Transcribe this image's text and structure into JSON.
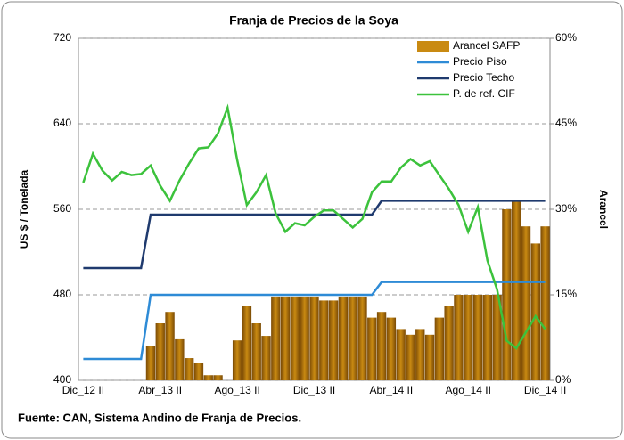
{
  "chart_data": {
    "type": "bar",
    "title": "Franja de Precios de la Soya",
    "y_label": "US $ / Tonelada",
    "y2_label": "Arancel",
    "source": "Fuente: CAN, Sistema Andino de Franja de Precios.",
    "categories": [
      "Dic_12 II",
      null,
      null,
      null,
      null,
      null,
      null,
      null,
      "Abr_13 II",
      null,
      null,
      null,
      null,
      null,
      null,
      null,
      "Ago_13 II",
      null,
      null,
      null,
      null,
      null,
      null,
      null,
      "Dic_13 II",
      null,
      null,
      null,
      null,
      null,
      null,
      null,
      "Abr_14 II",
      null,
      null,
      null,
      null,
      null,
      null,
      null,
      "Ago_14 II",
      null,
      null,
      null,
      null,
      null,
      null,
      null,
      "Dic_14 II"
    ],
    "ylim": [
      400,
      720
    ],
    "yticks": [
      400,
      480,
      560,
      640,
      720
    ],
    "y2lim": [
      0,
      60
    ],
    "y2ticks": [
      {
        "value": 0,
        "label": "0%"
      },
      {
        "value": 15,
        "label": "15%"
      },
      {
        "value": 30,
        "label": "30%"
      },
      {
        "value": 45,
        "label": "45%"
      },
      {
        "value": 60,
        "label": "60%"
      }
    ],
    "grid": true,
    "legend": "upper right",
    "series": [
      {
        "name": "Arancel SAFP",
        "type": "bar",
        "axis": "y2",
        "color": "#c98a12",
        "values": [
          0,
          0,
          0,
          0,
          0,
          0,
          0,
          6,
          10,
          12,
          7.2,
          3.9,
          3.1,
          0.9,
          0.9,
          0,
          7,
          13,
          10,
          7.8,
          14.7,
          14.7,
          14.7,
          14.7,
          14.7,
          14,
          14,
          14.7,
          14.7,
          14.7,
          11,
          12,
          11,
          9,
          8,
          9,
          8,
          11,
          13,
          15,
          15,
          15,
          15,
          15,
          30,
          31.7,
          27,
          24,
          27
        ]
      },
      {
        "name": "Precio Piso",
        "type": "line",
        "color": "#2e8bd6",
        "values": [
          420,
          420,
          420,
          420,
          420,
          420,
          420,
          480,
          480,
          480,
          480,
          480,
          480,
          480,
          480,
          480,
          480,
          480,
          480,
          480,
          480,
          480,
          480,
          480,
          480,
          480,
          480,
          480,
          480,
          480,
          480,
          492,
          492,
          492,
          492,
          492,
          492,
          492,
          492,
          492,
          492,
          492,
          492,
          492,
          492,
          492,
          492,
          492,
          492
        ]
      },
      {
        "name": "Precio Techo",
        "type": "line",
        "color": "#1f3a6e",
        "values": [
          505,
          505,
          505,
          505,
          505,
          505,
          505,
          555,
          555,
          555,
          555,
          555,
          555,
          555,
          555,
          555,
          555,
          555,
          555,
          555,
          555,
          555,
          555,
          555,
          555,
          555,
          555,
          555,
          555,
          555,
          555,
          568,
          568,
          568,
          568,
          568,
          568,
          568,
          568,
          568,
          568,
          568,
          568,
          568,
          568,
          568,
          568,
          568,
          568
        ]
      },
      {
        "name": "P. de ref. CIF",
        "type": "line",
        "color": "#3cc23c",
        "values": [
          585,
          612,
          596,
          587,
          595,
          592,
          593,
          601,
          582,
          568,
          587,
          603,
          617,
          618,
          631,
          655,
          606,
          564,
          576,
          592,
          556,
          539,
          547,
          545,
          553,
          559,
          559,
          551,
          543,
          551,
          576,
          586,
          586,
          599,
          607,
          601,
          605,
          592,
          579,
          564,
          539,
          562,
          512,
          485,
          437,
          430,
          445,
          460,
          448
        ]
      }
    ]
  }
}
